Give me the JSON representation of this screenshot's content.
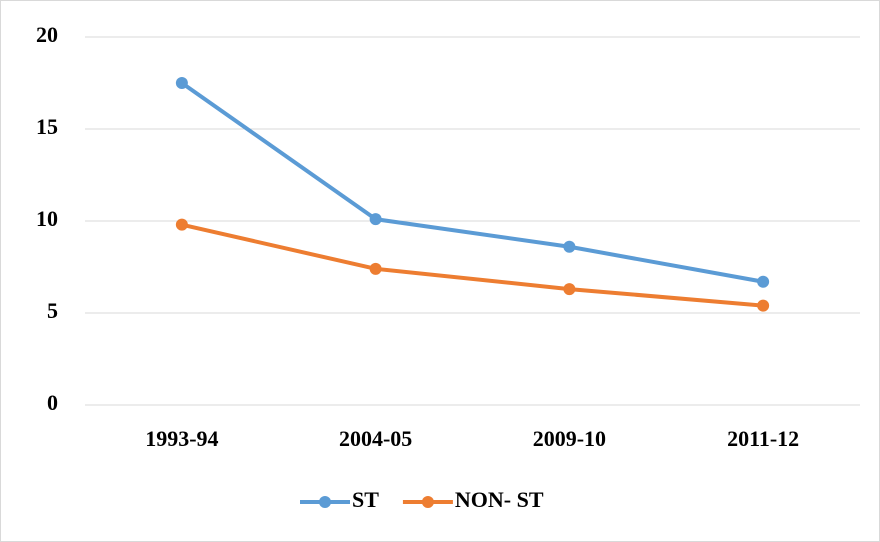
{
  "chart_data": {
    "type": "line",
    "categories": [
      "1993-94",
      "2004-05",
      "2009-10",
      "2011-12"
    ],
    "series": [
      {
        "name": "ST",
        "color": "#5b9bd5",
        "values": [
          17.5,
          10.1,
          8.6,
          6.7
        ]
      },
      {
        "name": "NON- ST",
        "color": "#ed7d31",
        "values": [
          9.8,
          7.4,
          6.3,
          5.4
        ]
      }
    ],
    "ylim": [
      0,
      20
    ],
    "yticks": [
      0,
      5,
      10,
      15,
      20
    ],
    "grid": true,
    "legend": "bottom"
  }
}
